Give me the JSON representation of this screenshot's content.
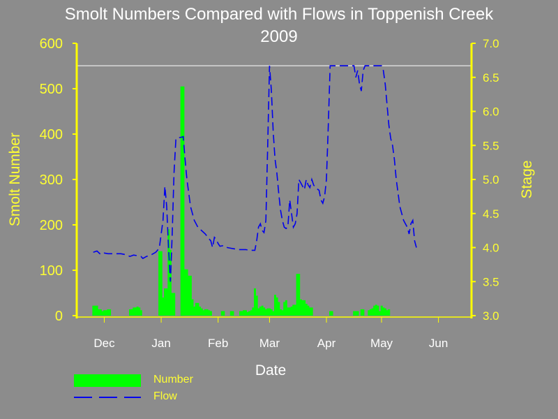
{
  "title_line1": "Smolt Numbers Compared with Flows in Toppenish Creek",
  "title_line2": "2009",
  "colors": {
    "background": "#8c8c8c",
    "axis": "#ffff00",
    "axis_text": "#ffff33",
    "bars": "#00ff00",
    "flow": "#0000ee",
    "reference_line": "#ffffff"
  },
  "chart_data": {
    "type": "bar+line",
    "xlabel": "Date",
    "ylabel_left": "Smolt Number",
    "ylabel_right": "Stage",
    "ylim_left": [
      0,
      600
    ],
    "ylim_right": [
      3.0,
      7.0
    ],
    "yticks_left": [
      "0",
      "100",
      "200",
      "300",
      "400",
      "500",
      "600"
    ],
    "yticks_right": [
      "3.0",
      "3.5",
      "4.0",
      "4.5",
      "5.0",
      "5.5",
      "6.0",
      "6.5",
      "7.0"
    ],
    "x_month_labels": [
      "Dec",
      "Jan",
      "Feb",
      "Mar",
      "Apr",
      "May",
      "Jun"
    ],
    "x_month_day_index": [
      15,
      46,
      77,
      105,
      136,
      166,
      197
    ],
    "x_domain_days": [
      0,
      215
    ],
    "reference_stage": 6.67,
    "series": [
      {
        "name": "Number",
        "kind": "bar",
        "axis": "left",
        "points": [
          [
            9,
            22
          ],
          [
            10,
            22
          ],
          [
            11,
            22
          ],
          [
            12,
            14
          ],
          [
            13,
            14
          ],
          [
            14,
            10
          ],
          [
            15,
            12
          ],
          [
            16,
            12
          ],
          [
            17,
            14
          ],
          [
            18,
            14
          ],
          [
            29,
            14
          ],
          [
            30,
            14
          ],
          [
            31,
            18
          ],
          [
            32,
            18
          ],
          [
            33,
            20
          ],
          [
            34,
            18
          ],
          [
            35,
            12
          ],
          [
            45,
            142
          ],
          [
            46,
            142
          ],
          [
            47,
            40
          ],
          [
            48,
            60
          ],
          [
            49,
            60
          ],
          [
            50,
            190
          ],
          [
            51,
            145
          ],
          [
            52,
            50
          ],
          [
            53,
            50
          ],
          [
            57,
            505
          ],
          [
            58,
            505
          ],
          [
            59,
            102
          ],
          [
            60,
            102
          ],
          [
            61,
            88
          ],
          [
            62,
            88
          ],
          [
            63,
            36
          ],
          [
            64,
            20
          ],
          [
            65,
            28
          ],
          [
            66,
            28
          ],
          [
            67,
            20
          ],
          [
            68,
            16
          ],
          [
            69,
            12
          ],
          [
            70,
            14
          ],
          [
            71,
            14
          ],
          [
            72,
            12
          ],
          [
            73,
            10
          ],
          [
            79,
            10
          ],
          [
            80,
            10
          ],
          [
            84,
            10
          ],
          [
            85,
            10
          ],
          [
            89,
            10
          ],
          [
            90,
            10
          ],
          [
            91,
            12
          ],
          [
            92,
            12
          ],
          [
            93,
            8
          ],
          [
            94,
            10
          ],
          [
            95,
            12
          ],
          [
            96,
            18
          ],
          [
            97,
            60
          ],
          [
            98,
            44
          ],
          [
            99,
            16
          ],
          [
            100,
            20
          ],
          [
            101,
            22
          ],
          [
            102,
            18
          ],
          [
            103,
            14
          ],
          [
            104,
            16
          ],
          [
            105,
            16
          ],
          [
            106,
            14
          ],
          [
            107,
            10
          ],
          [
            108,
            46
          ],
          [
            109,
            40
          ],
          [
            110,
            30
          ],
          [
            111,
            14
          ],
          [
            112,
            12
          ],
          [
            113,
            30
          ],
          [
            114,
            34
          ],
          [
            115,
            18
          ],
          [
            116,
            18
          ],
          [
            117,
            20
          ],
          [
            118,
            24
          ],
          [
            119,
            24
          ],
          [
            120,
            92
          ],
          [
            121,
            92
          ],
          [
            122,
            36
          ],
          [
            123,
            34
          ],
          [
            124,
            34
          ],
          [
            125,
            26
          ],
          [
            126,
            22
          ],
          [
            127,
            18
          ],
          [
            128,
            18
          ],
          [
            138,
            10
          ],
          [
            139,
            10
          ],
          [
            151,
            10
          ],
          [
            152,
            10
          ],
          [
            153,
            10
          ],
          [
            155,
            14
          ],
          [
            156,
            14
          ],
          [
            159,
            12
          ],
          [
            160,
            14
          ],
          [
            161,
            16
          ],
          [
            162,
            22
          ],
          [
            163,
            24
          ],
          [
            164,
            22
          ],
          [
            165,
            10
          ],
          [
            166,
            22
          ],
          [
            167,
            18
          ],
          [
            168,
            16
          ],
          [
            169,
            12
          ],
          [
            170,
            14
          ]
        ]
      },
      {
        "name": "Flow",
        "kind": "line",
        "axis": "right",
        "dashed": true,
        "points": [
          [
            9,
            3.93
          ],
          [
            11,
            3.95
          ],
          [
            13,
            3.9
          ],
          [
            15,
            3.92
          ],
          [
            17,
            3.91
          ],
          [
            20,
            3.91
          ],
          [
            24,
            3.91
          ],
          [
            26,
            3.9
          ],
          [
            27,
            3.89
          ],
          [
            28,
            3.88
          ],
          [
            29,
            3.87
          ],
          [
            31,
            3.89
          ],
          [
            33,
            3.88
          ],
          [
            35,
            3.87
          ],
          [
            36,
            3.84
          ],
          [
            38,
            3.87
          ],
          [
            41,
            3.9
          ],
          [
            43,
            3.93
          ],
          [
            44,
            3.96
          ],
          [
            45,
            4.0
          ],
          [
            46,
            4.2
          ],
          [
            47,
            4.4
          ],
          [
            48,
            4.9
          ],
          [
            49,
            4.6
          ],
          [
            50,
            4.0
          ],
          [
            51,
            3.5
          ],
          [
            52,
            4.2
          ],
          [
            53,
            5.1
          ],
          [
            54,
            5.6
          ],
          [
            55,
            5.61
          ],
          [
            57,
            5.62
          ],
          [
            58,
            5.63
          ],
          [
            59,
            5.3
          ],
          [
            60,
            5.0
          ],
          [
            61,
            4.8
          ],
          [
            62,
            4.6
          ],
          [
            63,
            4.5
          ],
          [
            64,
            4.4
          ],
          [
            66,
            4.3
          ],
          [
            68,
            4.25
          ],
          [
            70,
            4.2
          ],
          [
            72,
            4.13
          ],
          [
            73,
            4.1
          ],
          [
            74,
            4.0
          ],
          [
            75,
            4.15
          ],
          [
            76,
            4.12
          ],
          [
            77,
            4.06
          ],
          [
            78,
            4.02
          ],
          [
            80,
            4.03
          ],
          [
            82,
            4.0
          ],
          [
            84,
            3.99
          ],
          [
            86,
            3.98
          ],
          [
            88,
            3.97
          ],
          [
            90,
            3.97
          ],
          [
            92,
            3.97
          ],
          [
            94,
            3.96
          ],
          [
            96,
            3.96
          ],
          [
            97,
            3.96
          ],
          [
            98,
            4.1
          ],
          [
            99,
            4.3
          ],
          [
            100,
            4.35
          ],
          [
            101,
            4.25
          ],
          [
            102,
            4.22
          ],
          [
            103,
            4.4
          ],
          [
            104,
            5.5
          ],
          [
            105,
            6.67
          ],
          [
            106,
            6.3
          ],
          [
            107,
            5.7
          ],
          [
            108,
            5.3
          ],
          [
            109,
            5.1
          ],
          [
            110,
            4.8
          ],
          [
            111,
            4.55
          ],
          [
            112,
            4.4
          ],
          [
            113,
            4.3
          ],
          [
            114,
            4.28
          ],
          [
            115,
            4.3
          ],
          [
            116,
            4.7
          ],
          [
            117,
            4.5
          ],
          [
            118,
            4.3
          ],
          [
            119,
            4.35
          ],
          [
            120,
            4.5
          ],
          [
            121,
            5.0
          ],
          [
            122,
            4.95
          ],
          [
            123,
            4.9
          ],
          [
            124,
            4.85
          ],
          [
            125,
            5.0
          ],
          [
            126,
            4.92
          ],
          [
            127,
            4.88
          ],
          [
            128,
            5.0
          ],
          [
            129,
            4.92
          ],
          [
            130,
            4.88
          ],
          [
            131,
            4.86
          ],
          [
            132,
            4.84
          ],
          [
            133,
            4.7
          ],
          [
            134,
            4.65
          ],
          [
            135,
            4.75
          ],
          [
            136,
            5.0
          ],
          [
            137,
            5.8
          ],
          [
            138,
            6.67
          ],
          [
            139,
            6.67
          ],
          [
            142,
            6.67
          ],
          [
            146,
            6.67
          ],
          [
            151,
            6.67
          ],
          [
            152,
            6.5
          ],
          [
            153,
            6.6
          ],
          [
            154,
            6.4
          ],
          [
            155,
            6.3
          ],
          [
            156,
            6.6
          ],
          [
            157,
            6.67
          ],
          [
            160,
            6.67
          ],
          [
            166,
            6.67
          ],
          [
            167,
            6.6
          ],
          [
            168,
            6.4
          ],
          [
            169,
            6.1
          ],
          [
            170,
            5.8
          ],
          [
            171,
            5.6
          ],
          [
            172,
            5.5
          ],
          [
            173,
            5.3
          ],
          [
            174,
            5.0
          ],
          [
            175,
            4.8
          ],
          [
            176,
            4.6
          ],
          [
            177,
            4.5
          ],
          [
            178,
            4.4
          ],
          [
            179,
            4.35
          ],
          [
            180,
            4.3
          ],
          [
            181,
            4.2
          ],
          [
            182,
            4.35
          ],
          [
            183,
            4.4
          ],
          [
            184,
            4.1
          ],
          [
            185,
            4.0
          ]
        ]
      }
    ]
  }
}
